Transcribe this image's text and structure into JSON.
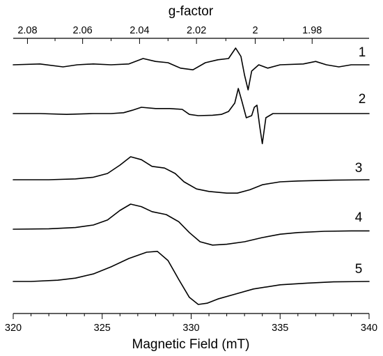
{
  "chart_data": {
    "type": "line",
    "title": "",
    "xlabel": "Magnetic Field (mT)",
    "top_xlabel": "g-factor",
    "ylabel": "",
    "xlim": [
      320,
      340
    ],
    "x_ticks": [
      320,
      325,
      330,
      335,
      340
    ],
    "x_tick_labels": [
      "320",
      "325",
      "330",
      "335",
      "340"
    ],
    "top_ticks": [
      "2.08",
      "2.06",
      "2.04",
      "2.02",
      "2",
      "1.98"
    ],
    "top_tick_fields": [
      320.8,
      323.9,
      327.1,
      330.3,
      333.6,
      336.8
    ],
    "grid": false,
    "legend": "none",
    "series": [
      {
        "name": "1",
        "points": [
          [
            320,
            0
          ],
          [
            321.5,
            0.02
          ],
          [
            322.8,
            -0.05
          ],
          [
            323.6,
            0
          ],
          [
            324.5,
            0.02
          ],
          [
            325.5,
            0
          ],
          [
            326.5,
            0.02
          ],
          [
            327.3,
            0.15
          ],
          [
            328,
            0.08
          ],
          [
            328.7,
            0.05
          ],
          [
            329.4,
            -0.08
          ],
          [
            330.1,
            -0.12
          ],
          [
            330.8,
            0.05
          ],
          [
            331.5,
            0.12
          ],
          [
            332.1,
            0.15
          ],
          [
            332.5,
            0.4
          ],
          [
            332.8,
            0.2
          ],
          [
            333.0,
            -0.25
          ],
          [
            333.2,
            -0.6
          ],
          [
            333.4,
            -0.15
          ],
          [
            333.8,
            0
          ],
          [
            334.3,
            -0.08
          ],
          [
            335,
            0
          ],
          [
            336.3,
            0.02
          ],
          [
            337,
            0.08
          ],
          [
            337.6,
            0
          ],
          [
            338.3,
            -0.05
          ],
          [
            339,
            0
          ],
          [
            340,
            0
          ]
        ]
      },
      {
        "name": "2",
        "points": [
          [
            320,
            0
          ],
          [
            321.5,
            0
          ],
          [
            323,
            -0.02
          ],
          [
            324.5,
            0
          ],
          [
            325.5,
            0
          ],
          [
            326.2,
            0.02
          ],
          [
            326.7,
            0.08
          ],
          [
            327.2,
            0.15
          ],
          [
            328,
            0.12
          ],
          [
            328.8,
            0.12
          ],
          [
            329.5,
            0.1
          ],
          [
            329.9,
            -0.02
          ],
          [
            330.4,
            -0.05
          ],
          [
            331.2,
            -0.04
          ],
          [
            331.7,
            -0.02
          ],
          [
            332.1,
            0.05
          ],
          [
            332.45,
            0.25
          ],
          [
            332.65,
            0.6
          ],
          [
            332.85,
            0.3
          ],
          [
            333.1,
            -0.1
          ],
          [
            333.4,
            -0.05
          ],
          [
            333.55,
            0.15
          ],
          [
            333.7,
            0.2
          ],
          [
            333.85,
            -0.3
          ],
          [
            334.0,
            -0.72
          ],
          [
            334.2,
            -0.1
          ],
          [
            334.6,
            0
          ],
          [
            336,
            0
          ],
          [
            338,
            0
          ],
          [
            340,
            0
          ]
        ]
      },
      {
        "name": "3",
        "points": [
          [
            320,
            0
          ],
          [
            322,
            0
          ],
          [
            323.5,
            0.02
          ],
          [
            324.5,
            0.06
          ],
          [
            325.3,
            0.15
          ],
          [
            326,
            0.35
          ],
          [
            326.6,
            0.55
          ],
          [
            327.2,
            0.48
          ],
          [
            327.8,
            0.32
          ],
          [
            328.5,
            0.28
          ],
          [
            329.1,
            0.15
          ],
          [
            329.6,
            -0.05
          ],
          [
            330.3,
            -0.22
          ],
          [
            331,
            -0.28
          ],
          [
            332,
            -0.32
          ],
          [
            332.6,
            -0.32
          ],
          [
            333.3,
            -0.24
          ],
          [
            334,
            -0.12
          ],
          [
            335,
            -0.05
          ],
          [
            336,
            -0.03
          ],
          [
            338,
            -0.01
          ],
          [
            340,
            0
          ]
        ]
      },
      {
        "name": "4",
        "points": [
          [
            320,
            0
          ],
          [
            322,
            0.01
          ],
          [
            323.5,
            0.04
          ],
          [
            324.5,
            0.1
          ],
          [
            325.3,
            0.22
          ],
          [
            326,
            0.45
          ],
          [
            326.6,
            0.6
          ],
          [
            327.2,
            0.54
          ],
          [
            327.8,
            0.42
          ],
          [
            328.6,
            0.35
          ],
          [
            329.3,
            0.18
          ],
          [
            329.9,
            -0.08
          ],
          [
            330.5,
            -0.3
          ],
          [
            331.2,
            -0.38
          ],
          [
            332,
            -0.36
          ],
          [
            333,
            -0.3
          ],
          [
            334,
            -0.2
          ],
          [
            335,
            -0.12
          ],
          [
            336,
            -0.08
          ],
          [
            337.5,
            -0.05
          ],
          [
            339,
            -0.04
          ],
          [
            340,
            -0.04
          ]
        ]
      },
      {
        "name": "5",
        "points": [
          [
            320,
            0
          ],
          [
            321,
            0
          ],
          [
            322.5,
            0.03
          ],
          [
            323.5,
            0.08
          ],
          [
            324.5,
            0.18
          ],
          [
            325.5,
            0.35
          ],
          [
            326.5,
            0.55
          ],
          [
            327.5,
            0.7
          ],
          [
            328.1,
            0.72
          ],
          [
            328.7,
            0.5
          ],
          [
            329.3,
            0.05
          ],
          [
            329.9,
            -0.38
          ],
          [
            330.4,
            -0.55
          ],
          [
            330.9,
            -0.52
          ],
          [
            331.5,
            -0.42
          ],
          [
            332.5,
            -0.3
          ],
          [
            333.5,
            -0.18
          ],
          [
            335,
            -0.08
          ],
          [
            336.5,
            -0.04
          ],
          [
            338,
            -0.01
          ],
          [
            340,
            0
          ]
        ]
      }
    ]
  }
}
